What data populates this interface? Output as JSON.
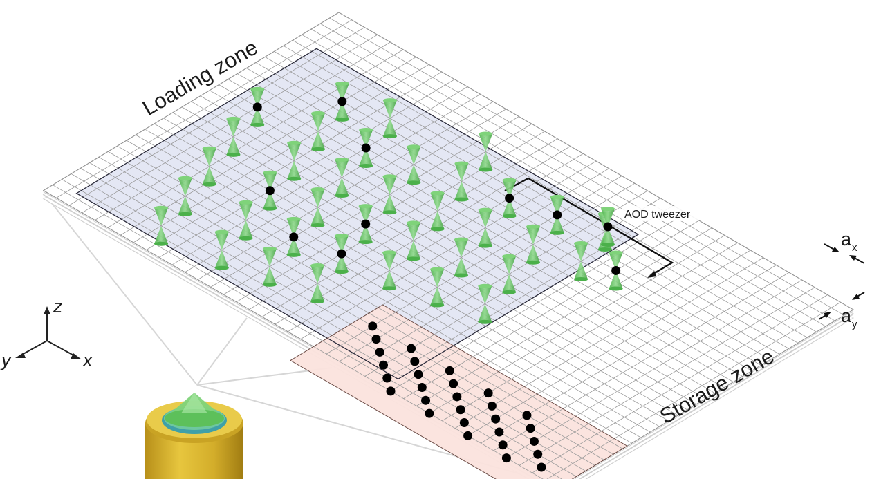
{
  "labels": {
    "loading_zone": "Loading zone",
    "storage_zone": "Storage zone",
    "aod_tweezer": "AOD tweezer",
    "ax_main": "a",
    "ax_sub": "x",
    "ay_main": "a",
    "ay_sub": "y",
    "axis_x": "x",
    "axis_y": "y",
    "axis_z": "z"
  },
  "colors": {
    "loading_zone_fill": "#dfe3f2",
    "storage_zone_fill": "#fbe3dd",
    "tweezer_green": "#5cc05a",
    "atom": "#000000",
    "objective_gold": "#d9b531"
  },
  "lattice": {
    "columns": 40,
    "rows": 32
  },
  "loading_zone": {
    "tweezers": [
      [
        3,
        13
      ],
      [
        4,
        17
      ],
      [
        5,
        21
      ],
      [
        6,
        25
      ],
      [
        7,
        29
      ],
      [
        6,
        8
      ],
      [
        7,
        12
      ],
      [
        8,
        16
      ],
      [
        9,
        20
      ],
      [
        10,
        24
      ],
      [
        11,
        28
      ],
      [
        9,
        7
      ],
      [
        10,
        11
      ],
      [
        11,
        15
      ],
      [
        12,
        19
      ],
      [
        13,
        23
      ],
      [
        14,
        27
      ],
      [
        13,
        10
      ],
      [
        14,
        14
      ],
      [
        15,
        18
      ],
      [
        16,
        22
      ],
      [
        17,
        26
      ],
      [
        15,
        5
      ],
      [
        16,
        9
      ],
      [
        17,
        13
      ],
      [
        18,
        17
      ],
      [
        19,
        21
      ],
      [
        19,
        8
      ],
      [
        20,
        12
      ],
      [
        21,
        16
      ],
      [
        22,
        20
      ],
      [
        22,
        7
      ],
      [
        23,
        11
      ],
      [
        24,
        15
      ],
      [
        25,
        19
      ],
      [
        25,
        6
      ],
      [
        26,
        10
      ],
      [
        28,
        9
      ]
    ],
    "atoms": [
      [
        3,
        13
      ],
      [
        6,
        8
      ],
      [
        9,
        20
      ],
      [
        10,
        11
      ],
      [
        13,
        23
      ],
      [
        15,
        18
      ],
      [
        16,
        22
      ],
      [
        19,
        8
      ],
      [
        22,
        7
      ],
      [
        28,
        9
      ]
    ]
  },
  "aod_tweezer": {
    "position": [
      28,
      17
    ]
  },
  "storage_zone": {
    "rows": [
      [
        [
          22,
          27
        ],
        [
          23,
          28
        ],
        [
          24,
          29
        ],
        [
          25,
          30
        ],
        [
          26,
          31
        ],
        [
          27,
          32
        ]
      ],
      [
        [
          25,
          27
        ],
        [
          26,
          28
        ],
        [
          27,
          29
        ],
        [
          28,
          30
        ],
        [
          29,
          31
        ],
        [
          30,
          32
        ]
      ],
      [
        [
          28,
          27
        ],
        [
          29,
          28
        ],
        [
          30,
          29
        ],
        [
          31,
          30
        ],
        [
          32,
          31
        ],
        [
          33,
          32
        ]
      ],
      [
        [
          31,
          27
        ],
        [
          32,
          28
        ],
        [
          33,
          29
        ],
        [
          34,
          30
        ],
        [
          35,
          31
        ],
        [
          36,
          32
        ]
      ],
      [
        [
          34,
          27
        ],
        [
          35,
          28
        ],
        [
          36,
          29
        ],
        [
          37,
          30
        ],
        [
          38,
          31
        ]
      ]
    ]
  }
}
